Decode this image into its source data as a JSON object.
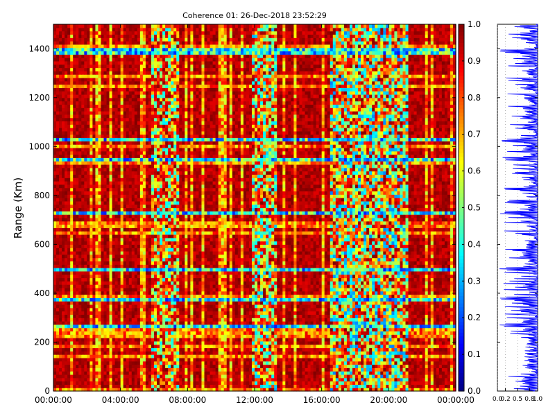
{
  "chart_data": [
    {
      "type": "heatmap",
      "title": "Coherence 01: 26-Dec-2018 23:52:29",
      "xlabel": "",
      "ylabel": "Range (Km)",
      "x_tick_labels": [
        "00:00:00",
        "04:00:00",
        "08:00:00",
        "12:00:00",
        "16:00:00",
        "20:00:00",
        "00:00:00"
      ],
      "xlim_hours": [
        0,
        24
      ],
      "y_ticks": [
        0,
        200,
        400,
        600,
        800,
        1000,
        1200,
        1400
      ],
      "ylim": [
        0,
        1500
      ],
      "colorbar": {
        "label": "",
        "ticks": [
          "0.0",
          "0.1",
          "0.2",
          "0.3",
          "0.4",
          "0.5",
          "0.6",
          "0.7",
          "0.8",
          "0.9",
          "1.0"
        ],
        "range": [
          0,
          1
        ],
        "colormap": "jet"
      },
      "high_coherence_regions": [
        {
          "range_km": [
            0,
            1500
          ],
          "hours": [
            0,
            5.8
          ],
          "level": 0.92
        },
        {
          "range_km": [
            0,
            1500
          ],
          "hours": [
            8,
            11.8
          ],
          "level": 0.9
        },
        {
          "range_km": [
            0,
            1500
          ],
          "hours": [
            13.5,
            16.5
          ],
          "level": 0.85
        },
        {
          "range_km": [
            0,
            1500
          ],
          "hours": [
            21.2,
            24
          ],
          "level": 0.85
        }
      ],
      "low_coherence_regions": [
        {
          "hours": [
            5.8,
            7.5
          ],
          "level": 0.65
        },
        {
          "hours": [
            11.8,
            13.4
          ],
          "level": 0.6
        },
        {
          "hours": [
            16.5,
            21.2
          ],
          "level": 0.55
        }
      ],
      "low_coherence_range_bands_km": [
        1390,
        1025,
        950,
        730,
        500,
        380,
        270
      ]
    },
    {
      "type": "line",
      "title": "",
      "xlabel": "",
      "ylabel": "",
      "x_tick_labels": [
        "0.0",
        "0.2",
        "0.5",
        "0.8",
        "1.0"
      ],
      "xlim": [
        0,
        1
      ],
      "ylim": [
        0,
        1500
      ],
      "line_color": "#0000ff",
      "description_values": "profile of coherence versus range, values mostly between 0.2 and 1.0"
    }
  ]
}
